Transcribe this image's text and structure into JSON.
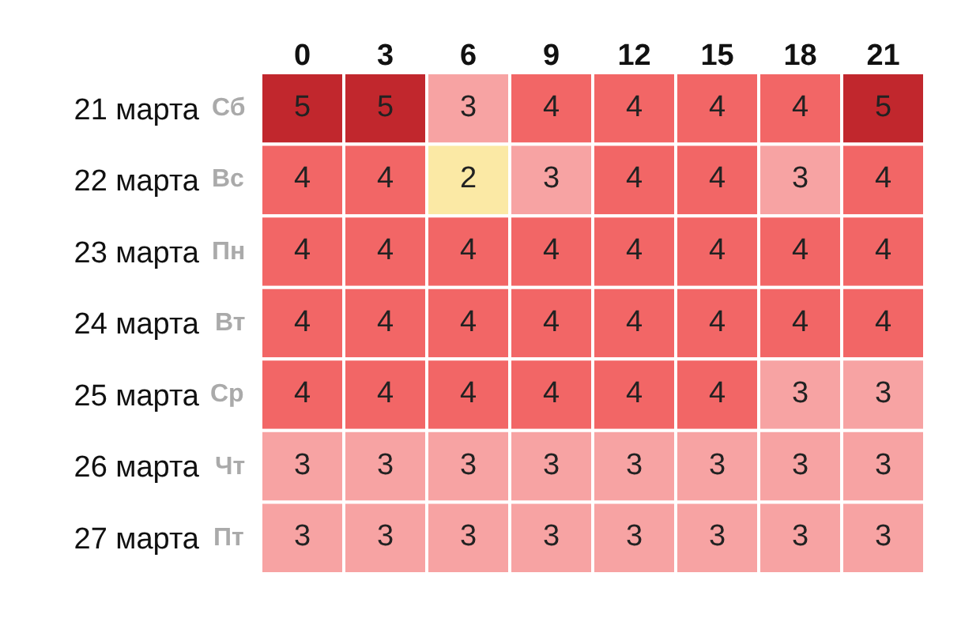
{
  "chart_data": {
    "type": "heatmap",
    "categories": [
      "0",
      "3",
      "6",
      "9",
      "12",
      "15",
      "18",
      "21"
    ],
    "y_categories": [
      "21 марта",
      "22 марта",
      "23 марта",
      "24 марта",
      "25 марта",
      "26 марта",
      "27 марта"
    ],
    "y2_categories": [
      "Сб",
      "Вс",
      "Пн",
      "Вт",
      "Ср",
      "Чт",
      "Пт"
    ],
    "cells": [
      [
        5,
        5,
        3,
        4,
        4,
        4,
        4,
        5
      ],
      [
        4,
        4,
        2,
        3,
        4,
        4,
        3,
        4
      ],
      [
        4,
        4,
        4,
        4,
        4,
        4,
        4,
        4
      ],
      [
        4,
        4,
        4,
        4,
        4,
        4,
        4,
        4
      ],
      [
        4,
        4,
        4,
        4,
        4,
        4,
        3,
        3
      ],
      [
        3,
        3,
        3,
        3,
        3,
        3,
        3,
        3
      ],
      [
        3,
        3,
        3,
        3,
        3,
        3,
        3,
        3
      ]
    ],
    "colors": [
      "#fbe9a5",
      "#f7a3a3",
      "#f26666",
      "#c1272d"
    ],
    "data_labels": true
  }
}
